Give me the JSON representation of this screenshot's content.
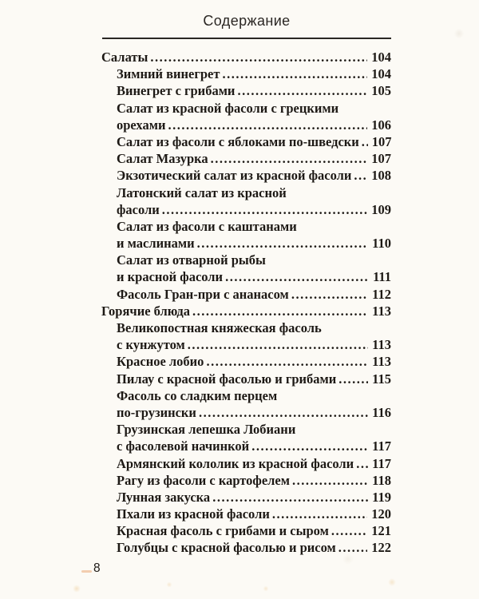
{
  "page": {
    "title": "Содержание",
    "folio": "8"
  },
  "colors": {
    "paper": "#fcfaf5",
    "ink": "#1d1915",
    "rule": "#2a2724",
    "smudge": "#e8965c"
  },
  "toc_lines": [
    {
      "level": 0,
      "text": "Салаты",
      "page": "104"
    },
    {
      "level": 1,
      "text": "Зимний винегрет",
      "page": "104"
    },
    {
      "level": 1,
      "text": "Винегрет с грибами",
      "page": "105"
    },
    {
      "level": 1,
      "text": "Салат из красной фасоли с грецкими",
      "page": null
    },
    {
      "level": 1,
      "text": "орехами",
      "page": "106"
    },
    {
      "level": 1,
      "text": "Салат из фасоли с яблоками по-шведски",
      "page": "107"
    },
    {
      "level": 1,
      "text": "Салат Мазурка",
      "page": "107"
    },
    {
      "level": 1,
      "text": "Экзотический салат из красной фасоли",
      "page": "108"
    },
    {
      "level": 1,
      "text": "Латонский салат из красной",
      "page": null
    },
    {
      "level": 1,
      "text": "фасоли",
      "page": "109"
    },
    {
      "level": 1,
      "text": "Салат из фасоли с каштанами",
      "page": null
    },
    {
      "level": 1,
      "text": "и маслинами",
      "page": "110"
    },
    {
      "level": 1,
      "text": "Салат из отварной рыбы",
      "page": null
    },
    {
      "level": 1,
      "text": "и красной фасоли",
      "page": "111"
    },
    {
      "level": 1,
      "text": "Фасоль Гран-при с ананасом",
      "page": "112"
    },
    {
      "level": 0,
      "text": "Горячие блюда",
      "page": "113"
    },
    {
      "level": 1,
      "text": "Великопостная княжеская фасоль",
      "page": null
    },
    {
      "level": 1,
      "text": "с кунжутом",
      "page": "113"
    },
    {
      "level": 1,
      "text": "Красное лобио",
      "page": "113"
    },
    {
      "level": 1,
      "text": "Пилау с красной фасолью и грибами",
      "page": "115"
    },
    {
      "level": 1,
      "text": "Фасоль со сладким перцем",
      "page": null
    },
    {
      "level": 1,
      "text": "по-грузински",
      "page": "116"
    },
    {
      "level": 1,
      "text": "Грузинская лепешка Лобиани",
      "page": null
    },
    {
      "level": 1,
      "text": "с фасолевой начинкой",
      "page": "117"
    },
    {
      "level": 1,
      "text": "Армянский кололик из красной фасоли",
      "page": "117"
    },
    {
      "level": 1,
      "text": "Рагу из фасоли с картофелем",
      "page": "118"
    },
    {
      "level": 1,
      "text": "Лунная закуска",
      "page": "119"
    },
    {
      "level": 1,
      "text": "Пхали из красной фасоли",
      "page": "120"
    },
    {
      "level": 1,
      "text": "Красная фасоль с грибами и сыром",
      "page": "121"
    },
    {
      "level": 1,
      "text": "Голубцы с красной фасолью и рисом",
      "page": "122"
    }
  ]
}
